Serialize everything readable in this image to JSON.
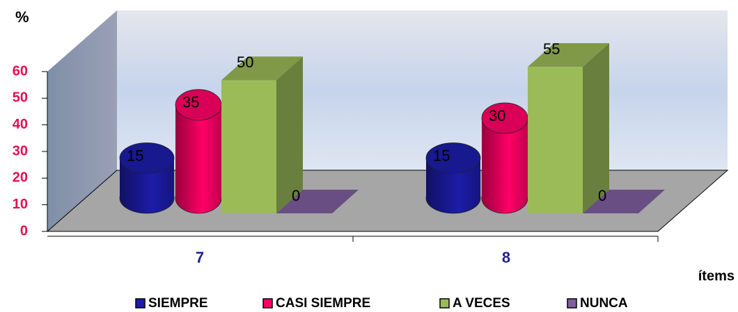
{
  "chart_data": {
    "type": "bar3d",
    "y_label": "%",
    "x_label": "ítems",
    "categories": [
      "7",
      "8"
    ],
    "series": [
      {
        "name": "SIEMPRE",
        "color": "#1c1ca8",
        "shape": "cylinder",
        "values": [
          15,
          15
        ]
      },
      {
        "name": "CASI SIEMPRE",
        "color": "#ff0066",
        "shape": "cylinder",
        "values": [
          35,
          30
        ]
      },
      {
        "name": "A VECES",
        "color": "#9bbb59",
        "shape": "box",
        "values": [
          50,
          55
        ]
      },
      {
        "name": "NUNCA",
        "color": "#7f5fa0",
        "shape": "box",
        "values": [
          0,
          0
        ]
      }
    ],
    "ylim": [
      0,
      60
    ],
    "yticks": [
      0,
      10,
      20,
      30,
      40,
      50,
      60
    ],
    "legend": "bottom"
  }
}
